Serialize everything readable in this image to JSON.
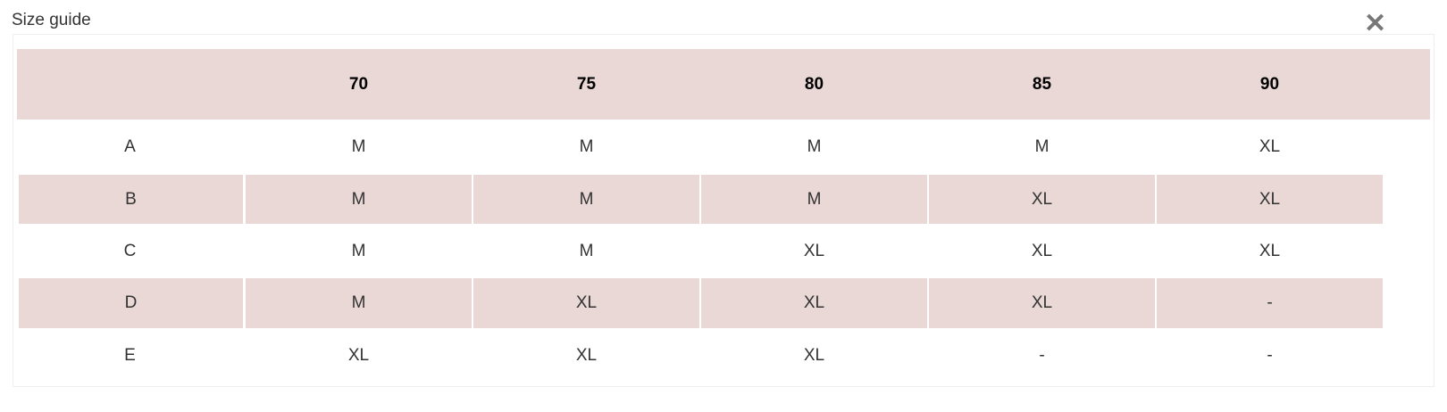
{
  "dialog": {
    "title": "Size guide",
    "close_icon": "close-icon"
  },
  "table": {
    "colors": {
      "header_bg": "#e9d8d6",
      "stripe_bg": "#e9d8d6"
    },
    "headers": [
      "",
      "70",
      "75",
      "80",
      "85",
      "90"
    ],
    "rows": [
      [
        "A",
        "M",
        "M",
        "M",
        "M",
        "XL"
      ],
      [
        "B",
        "M",
        "M",
        "M",
        "XL",
        "XL"
      ],
      [
        "C",
        "M",
        "M",
        "XL",
        "XL",
        "XL"
      ],
      [
        "D",
        "M",
        "XL",
        "XL",
        "XL",
        "-"
      ],
      [
        "E",
        "XL",
        "XL",
        "XL",
        "-",
        "-"
      ]
    ]
  }
}
